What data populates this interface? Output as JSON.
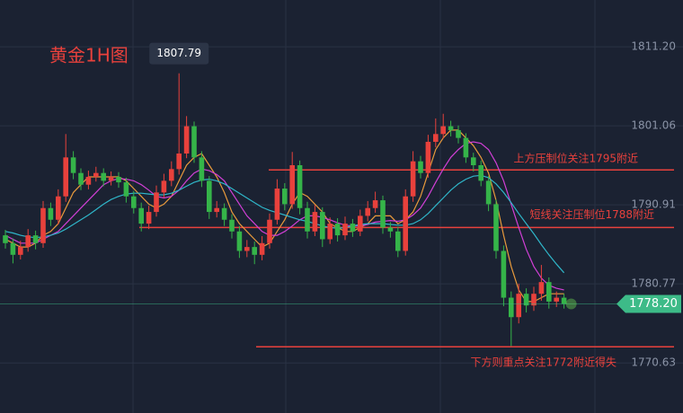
{
  "chart_data": {
    "type": "candlestick",
    "title": "黄金1H图",
    "ylim": [
      1764.2,
      1817.2
    ],
    "yticks": [
      {
        "value": 1811.2,
        "label": "1811.20"
      },
      1801.06,
      1790.91,
      1780.77,
      1770.63
    ],
    "grid": true,
    "up_color": "#e8413c",
    "down_color": "#35b449",
    "open": [
      1787,
      1786,
      1784.5,
      1785.5,
      1787,
      1786,
      1790.5,
      1789,
      1792,
      1797,
      1795,
      1793.5,
      1794.5,
      1795,
      1794,
      1794.5,
      1793.8,
      1792,
      1790.5,
      1788.5,
      1790,
      1792.5,
      1794,
      1795.5,
      1797.5,
      1801,
      1797,
      1794,
      1790,
      1790.5,
      1789,
      1787.5,
      1785,
      1785.5,
      1784.5,
      1786,
      1789,
      1793,
      1791,
      1796,
      1790.5,
      1787.5,
      1790,
      1786.5,
      1788.5,
      1787,
      1788.5,
      1787.5,
      1789.5,
      1790.5,
      1791.5,
      1788,
      1787.5,
      1785,
      1792,
      1796.5,
      1795,
      1799,
      1800,
      1801,
      1800.5,
      1799.5,
      1797,
      1796,
      1794,
      1791,
      1785,
      1779,
      1776.5,
      1779.5,
      1778,
      1779.5,
      1781,
      1778.5,
      1779
    ],
    "high": [
      1787.7,
      1786.6,
      1786.3,
      1787.8,
      1787.6,
      1791.4,
      1791.2,
      1792.9,
      1800,
      1797.8,
      1795.6,
      1795.3,
      1795.8,
      1795.6,
      1795.2,
      1795.1,
      1794.4,
      1792.7,
      1791.2,
      1790.8,
      1793.4,
      1794.9,
      1796.5,
      1807.79,
      1802.3,
      1801.6,
      1797.8,
      1794.6,
      1791.4,
      1791.1,
      1789.7,
      1788.2,
      1786.4,
      1786.2,
      1786.9,
      1789.8,
      1794.2,
      1793.7,
      1797.7,
      1796.6,
      1791.3,
      1790.9,
      1790.6,
      1789.3,
      1789.2,
      1789.4,
      1789.1,
      1790.3,
      1791.4,
      1792.6,
      1792.1,
      1788.7,
      1788.1,
      1792.9,
      1797.8,
      1797.2,
      1799.9,
      1802,
      1802.6,
      1801.7,
      1801.1,
      1800.1,
      1797.6,
      1796.6,
      1794.6,
      1791.6,
      1785.7,
      1779.8,
      1780.8,
      1780.2,
      1780.4,
      1783.2,
      1781.6,
      1779.8,
      1779.5
    ],
    "low": [
      1785.3,
      1783.4,
      1783.9,
      1784.9,
      1785.2,
      1785.4,
      1788.2,
      1788.4,
      1791.3,
      1794.2,
      1792.8,
      1792.9,
      1793.9,
      1793.3,
      1793.4,
      1793.1,
      1791.2,
      1789.8,
      1787.5,
      1787.8,
      1789.4,
      1791.8,
      1793.3,
      1794.8,
      1796.9,
      1796.3,
      1793.2,
      1789.1,
      1789.3,
      1788.2,
      1786.6,
      1784.1,
      1784.2,
      1783.3,
      1783.8,
      1785.3,
      1788.4,
      1790.2,
      1790.4,
      1789.7,
      1786.6,
      1786.9,
      1785.5,
      1785.9,
      1786.2,
      1786.4,
      1786.8,
      1786.9,
      1788.8,
      1789.9,
      1787.2,
      1786.7,
      1784.2,
      1784.4,
      1791.3,
      1794.3,
      1794.4,
      1798.3,
      1799.4,
      1799.7,
      1798.8,
      1796.3,
      1795.2,
      1793.3,
      1790.1,
      1784,
      1777.9,
      1772.8,
      1775.7,
      1777.1,
      1777.3,
      1778.6,
      1777.6,
      1777.8,
      1777.6
    ],
    "close": [
      1786,
      1784.5,
      1785.5,
      1787,
      1786,
      1790.5,
      1789,
      1792,
      1797,
      1795,
      1793.5,
      1794.5,
      1795,
      1794,
      1794.5,
      1793.8,
      1792,
      1790.5,
      1788.5,
      1790,
      1792.5,
      1794,
      1795.5,
      1797.5,
      1801,
      1797,
      1794,
      1790,
      1790.5,
      1789,
      1787.5,
      1785,
      1785.5,
      1784.5,
      1786,
      1789,
      1793,
      1791,
      1796,
      1790.5,
      1787.5,
      1790,
      1786.5,
      1788.5,
      1787,
      1788.5,
      1787.5,
      1789.5,
      1790.5,
      1791.5,
      1788,
      1787.5,
      1785,
      1792,
      1796.5,
      1795,
      1799,
      1800,
      1801,
      1800.5,
      1799.5,
      1797,
      1796,
      1794,
      1791,
      1785,
      1779,
      1776.5,
      1779.5,
      1778,
      1779.5,
      1781,
      1778.5,
      1779,
      1778.2
    ],
    "series": [
      {
        "color": "#e89a3c",
        "values": [
          1786.5,
          1786,
          1785.5,
          1785.5,
          1786,
          1787,
          1787.5,
          1788.5,
          1790.5,
          1792.5,
          1793.5,
          1794.5,
          1794.5,
          1794.5,
          1794.5,
          1794.5,
          1794,
          1793,
          1792,
          1791,
          1790.5,
          1791,
          1792,
          1794,
          1796,
          1797,
          1797.5,
          1796,
          1794.5,
          1792.5,
          1790,
          1788.5,
          1787.5,
          1786.5,
          1785.5,
          1786,
          1787.5,
          1789,
          1791,
          1792.5,
          1792,
          1791,
          1790,
          1788.5,
          1788,
          1787.5,
          1787.5,
          1788,
          1788.5,
          1789.5,
          1789.5,
          1789.5,
          1788.5,
          1789,
          1790,
          1792,
          1795,
          1798,
          1799.5,
          1800.5,
          1800.5,
          1799.5,
          1798.5,
          1797,
          1795,
          1791.5,
          1787,
          1783,
          1780,
          1778.5,
          1778.5,
          1779,
          1779.5,
          1779.5,
          1779.5
        ]
      },
      {
        "color": "#d13fd6",
        "values": [
          1787,
          1786.5,
          1786,
          1786,
          1786,
          1786.5,
          1787,
          1787.5,
          1788.5,
          1789.5,
          1790.5,
          1791.5,
          1792.5,
          1793.5,
          1794,
          1794.3,
          1794.2,
          1794,
          1793.5,
          1792.8,
          1792,
          1791.8,
          1792,
          1792.8,
          1794,
          1795,
          1795.5,
          1795.3,
          1794.8,
          1794,
          1792.5,
          1791,
          1789.5,
          1788.5,
          1787.5,
          1787,
          1787,
          1787.5,
          1788.2,
          1789,
          1789.5,
          1789.5,
          1789.3,
          1789,
          1788.6,
          1788.3,
          1788.2,
          1788.2,
          1788.4,
          1788.7,
          1788.8,
          1788.9,
          1788.8,
          1789,
          1789.6,
          1790.5,
          1792,
          1793.8,
          1795.5,
          1797,
          1798,
          1798.8,
          1799,
          1798.8,
          1798,
          1796.3,
          1794,
          1791,
          1788,
          1785.2,
          1783,
          1781.5,
          1780.6,
          1780.2,
          1780
        ]
      },
      {
        "color": "#2fb6c9",
        "values": [
          1787.5,
          1787.3,
          1787,
          1786.8,
          1786.7,
          1786.8,
          1787,
          1787.3,
          1787.8,
          1788.4,
          1789,
          1789.6,
          1790.3,
          1791,
          1791.6,
          1792,
          1792.3,
          1792.4,
          1792.4,
          1792.3,
          1792.2,
          1792.2,
          1792.4,
          1792.8,
          1793.3,
          1793.8,
          1794.1,
          1794.2,
          1794,
          1793.6,
          1793,
          1792.4,
          1791.8,
          1791.2,
          1790.6,
          1790.2,
          1789.9,
          1789.6,
          1789.3,
          1789,
          1788.8,
          1788.5,
          1788.2,
          1788,
          1787.9,
          1788,
          1788.2,
          1788.4,
          1788.5,
          1788.5,
          1788.5,
          1788.4,
          1788.3,
          1788.3,
          1788.5,
          1789,
          1789.8,
          1790.8,
          1791.8,
          1792.8,
          1793.6,
          1794.2,
          1794.6,
          1794.7,
          1794.4,
          1793.6,
          1792.5,
          1791.2,
          1789.8,
          1788.5,
          1787.2,
          1785.8,
          1784.5,
          1783.3,
          1782.2
        ]
      }
    ],
    "levels": [
      {
        "value": 1795.4,
        "label": "上方压制位关注1795附近"
      },
      {
        "value": 1788,
        "label": "短线关注压制位1788附近"
      },
      {
        "value": 1772.7,
        "label": "下方则重点关注1772附近得失"
      }
    ],
    "level_color": "#e8413c",
    "last_price": {
      "value": 1778.2,
      "label": "1778.20"
    },
    "last_price_color": "#3dbb88"
  }
}
